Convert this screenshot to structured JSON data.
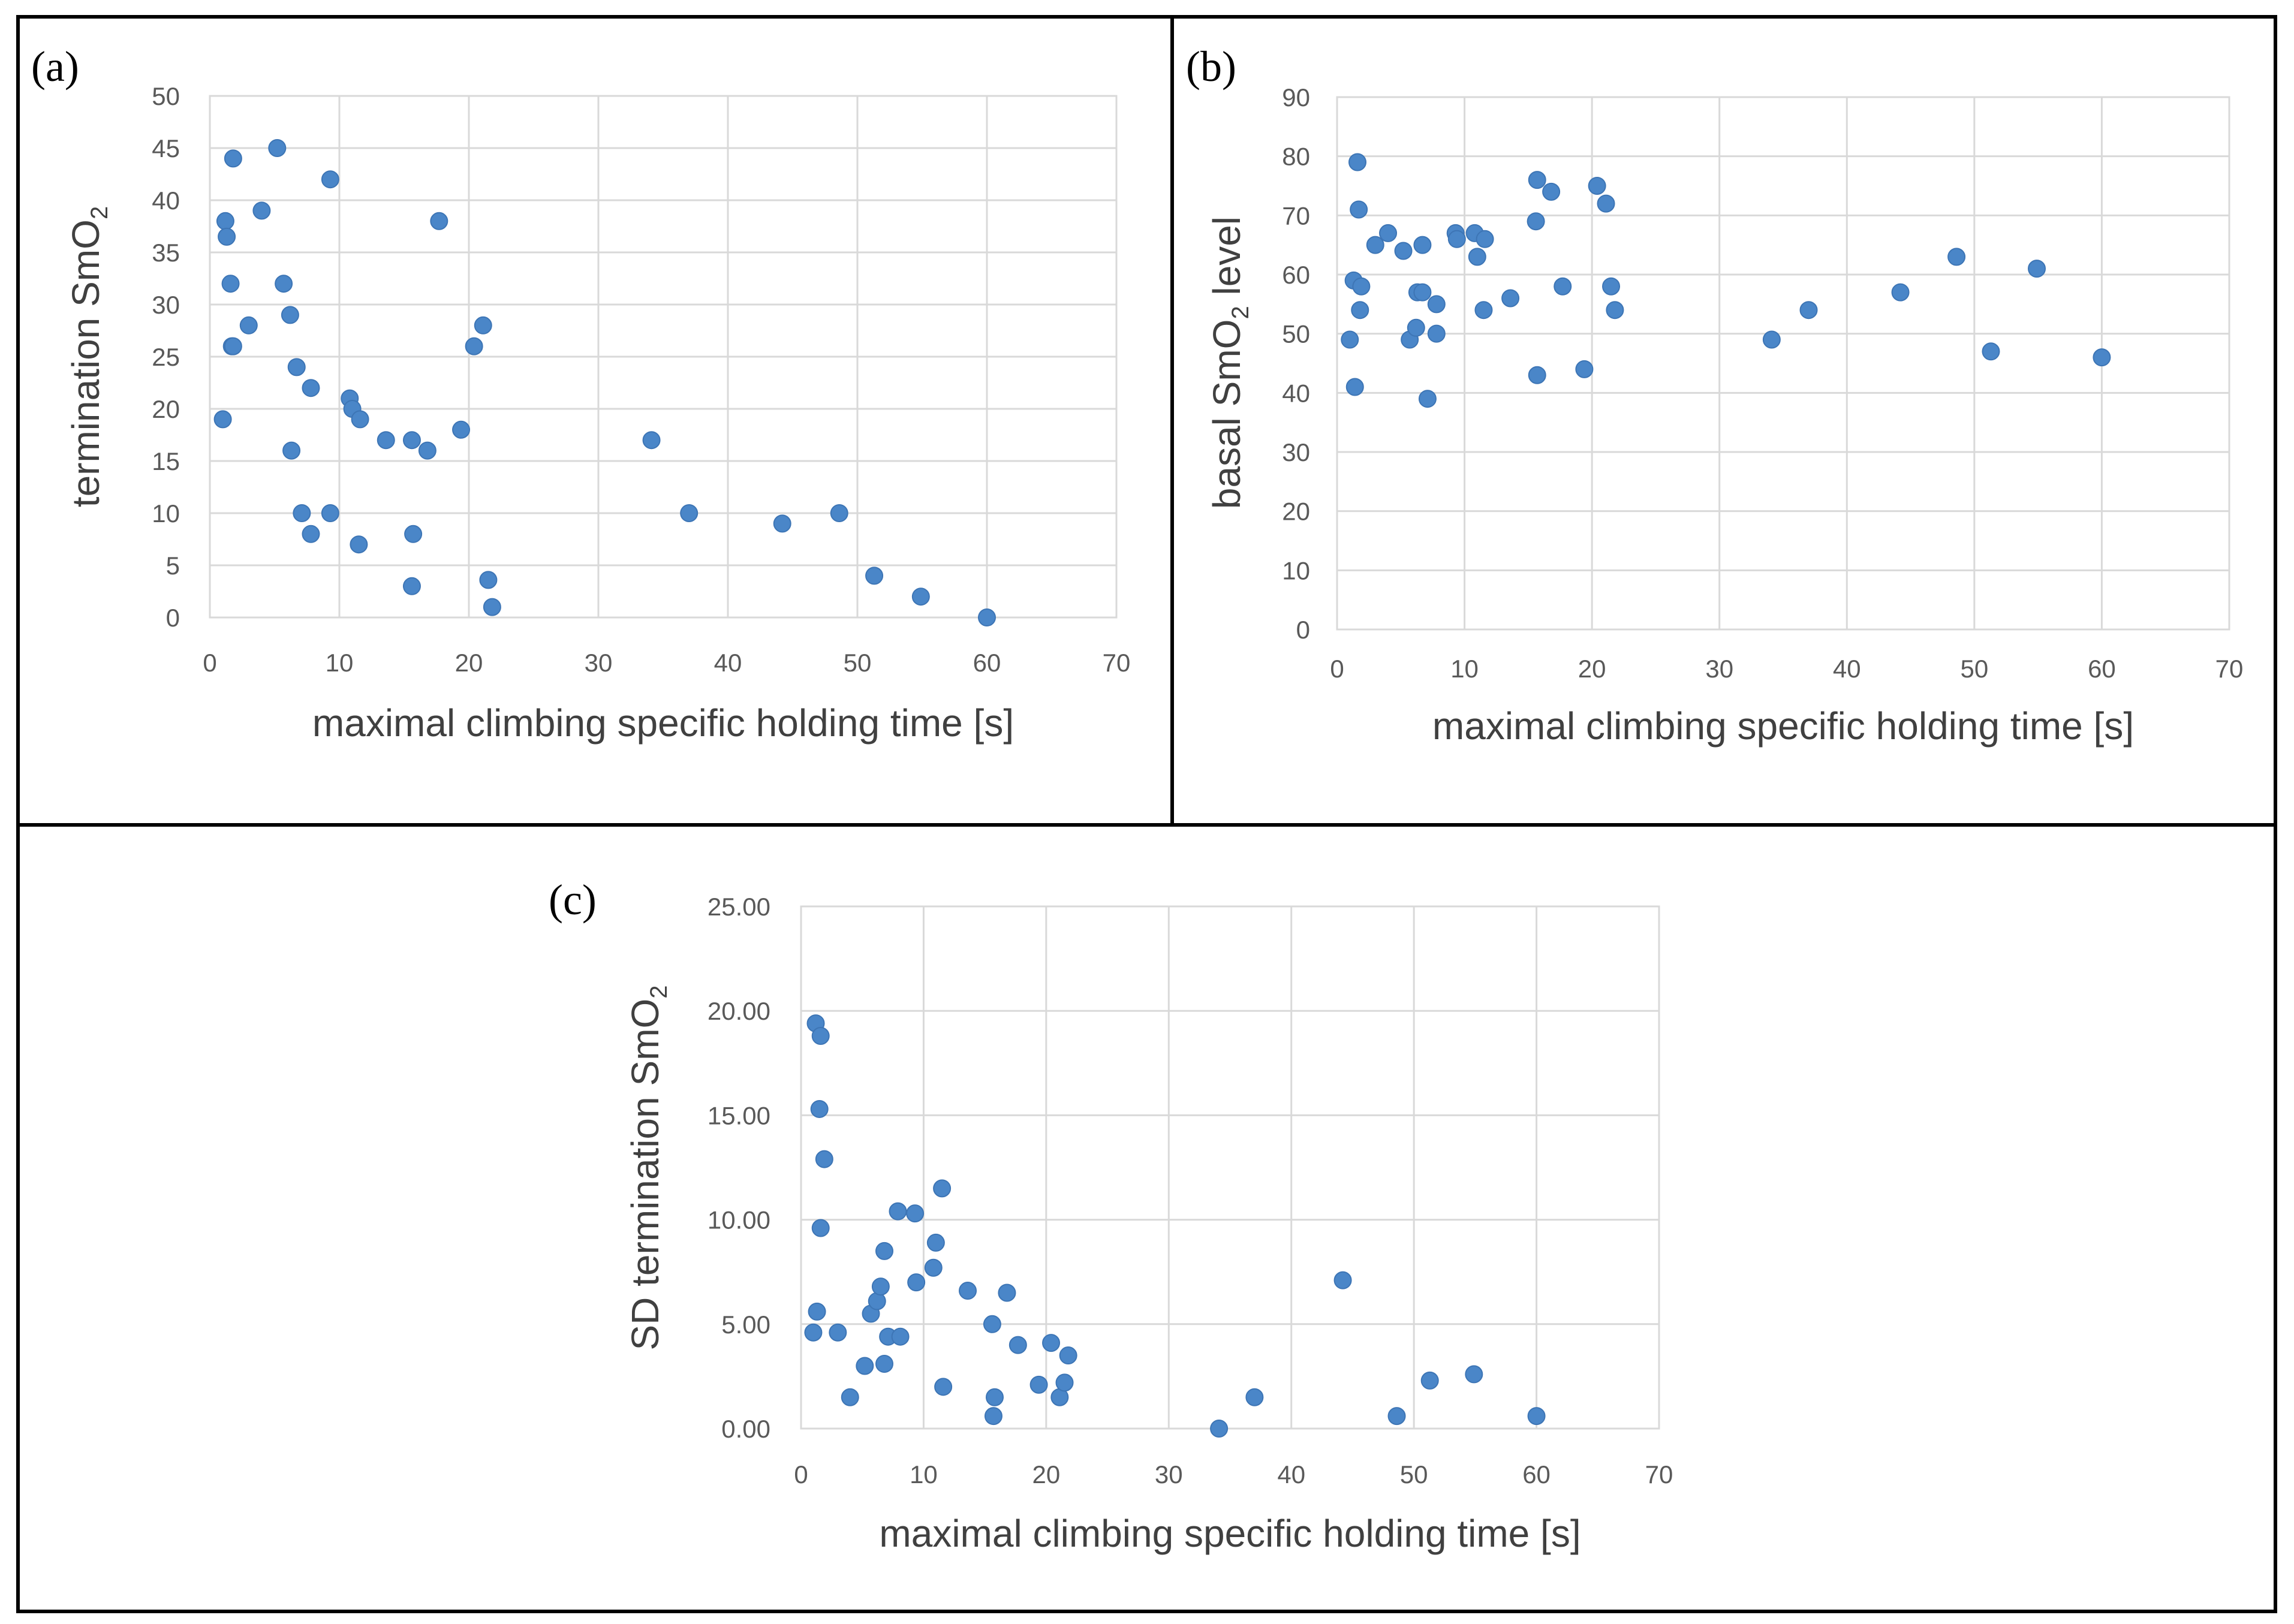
{
  "chart_data": [
    {
      "type": "scatter",
      "panel_label": "(a)",
      "title": "",
      "xlabel": "maximal climbing specific holding time [s]",
      "ylabel": "termination SmO",
      "ylabel_subscript": "2",
      "xlim": [
        0,
        70
      ],
      "ylim": [
        0,
        50
      ],
      "x_ticks": [
        "0",
        "10",
        "20",
        "30",
        "40",
        "50",
        "60",
        "70"
      ],
      "y_ticks": [
        "0",
        "5",
        "10",
        "15",
        "20",
        "25",
        "30",
        "35",
        "40",
        "45",
        "50"
      ],
      "grid": true,
      "legend": "none",
      "points": [
        [
          1.2,
          38
        ],
        [
          1.3,
          36.5
        ],
        [
          1.6,
          32
        ],
        [
          1.7,
          26
        ],
        [
          1.8,
          26
        ],
        [
          1.8,
          44
        ],
        [
          1.0,
          19
        ],
        [
          3.0,
          28
        ],
        [
          4.0,
          39
        ],
        [
          5.2,
          45
        ],
        [
          5.7,
          32
        ],
        [
          6.2,
          29
        ],
        [
          6.7,
          24
        ],
        [
          6.3,
          16
        ],
        [
          7.1,
          10
        ],
        [
          7.8,
          22
        ],
        [
          7.8,
          8
        ],
        [
          9.3,
          10
        ],
        [
          9.3,
          42
        ],
        [
          10.8,
          21
        ],
        [
          11.0,
          20
        ],
        [
          11.6,
          19
        ],
        [
          11.5,
          7
        ],
        [
          13.6,
          17
        ],
        [
          15.6,
          17
        ],
        [
          15.7,
          8
        ],
        [
          15.6,
          3
        ],
        [
          16.8,
          16
        ],
        [
          17.7,
          38
        ],
        [
          19.4,
          18
        ],
        [
          20.4,
          26
        ],
        [
          21.1,
          28
        ],
        [
          21.5,
          3.6
        ],
        [
          21.8,
          1
        ],
        [
          34.1,
          17
        ],
        [
          37.0,
          10
        ],
        [
          44.2,
          9
        ],
        [
          48.6,
          10
        ],
        [
          51.3,
          4
        ],
        [
          54.9,
          2
        ],
        [
          60.0,
          0
        ]
      ]
    },
    {
      "type": "scatter",
      "panel_label": "(b)",
      "title": "",
      "xlabel": "maximal climbing specific holding time [s]",
      "ylabel": "basal SmO",
      "ylabel_subscript": "2",
      "ylabel_suffix": " level",
      "xlim": [
        0,
        70
      ],
      "ylim": [
        0,
        90
      ],
      "x_ticks": [
        "0",
        "10",
        "20",
        "30",
        "40",
        "50",
        "60",
        "70"
      ],
      "y_ticks": [
        "0",
        "10",
        "20",
        "30",
        "40",
        "50",
        "60",
        "70",
        "80",
        "90"
      ],
      "grid": true,
      "legend": "none",
      "points": [
        [
          1.0,
          49
        ],
        [
          1.3,
          59
        ],
        [
          1.4,
          41
        ],
        [
          1.6,
          79
        ],
        [
          1.7,
          71
        ],
        [
          1.8,
          54
        ],
        [
          1.9,
          58
        ],
        [
          3.0,
          65
        ],
        [
          4.0,
          67
        ],
        [
          5.2,
          64
        ],
        [
          5.7,
          49
        ],
        [
          6.2,
          51
        ],
        [
          6.3,
          57
        ],
        [
          6.7,
          57
        ],
        [
          6.7,
          65
        ],
        [
          7.1,
          39
        ],
        [
          7.8,
          55
        ],
        [
          7.8,
          50
        ],
        [
          9.3,
          67
        ],
        [
          9.4,
          66
        ],
        [
          10.8,
          67
        ],
        [
          11.0,
          63
        ],
        [
          11.5,
          54
        ],
        [
          11.6,
          66
        ],
        [
          13.6,
          56
        ],
        [
          15.6,
          69
        ],
        [
          15.7,
          76
        ],
        [
          15.7,
          43
        ],
        [
          16.8,
          74
        ],
        [
          17.7,
          58
        ],
        [
          19.4,
          44
        ],
        [
          20.4,
          75
        ],
        [
          21.1,
          72
        ],
        [
          21.5,
          58
        ],
        [
          21.8,
          54
        ],
        [
          34.1,
          49
        ],
        [
          37.0,
          54
        ],
        [
          44.2,
          57
        ],
        [
          48.6,
          63
        ],
        [
          51.3,
          47
        ],
        [
          54.9,
          61
        ],
        [
          60.0,
          46
        ]
      ]
    },
    {
      "type": "scatter",
      "panel_label": "(c)",
      "title": "",
      "xlabel": "maximal climbing specific holding time [s]",
      "ylabel": "SD termination SmO",
      "ylabel_subscript": "2",
      "xlim": [
        0,
        70
      ],
      "ylim": [
        0,
        25
      ],
      "x_ticks": [
        "0",
        "10",
        "20",
        "30",
        "40",
        "50",
        "60",
        "70"
      ],
      "y_ticks": [
        "0.00",
        "5.00",
        "10.00",
        "15.00",
        "20.00",
        "25.00"
      ],
      "grid": true,
      "legend": "none",
      "points": [
        [
          1.2,
          19.4
        ],
        [
          1.6,
          18.8
        ],
        [
          1.5,
          15.3
        ],
        [
          1.9,
          12.9
        ],
        [
          1.6,
          9.6
        ],
        [
          1.3,
          5.6
        ],
        [
          1.0,
          4.6
        ],
        [
          3.0,
          4.6
        ],
        [
          4.0,
          1.5
        ],
        [
          5.2,
          3.0
        ],
        [
          5.7,
          5.5
        ],
        [
          6.2,
          6.1
        ],
        [
          6.5,
          6.8
        ],
        [
          6.8,
          8.5
        ],
        [
          6.8,
          3.1
        ],
        [
          7.1,
          4.4
        ],
        [
          7.9,
          10.4
        ],
        [
          8.1,
          4.4
        ],
        [
          9.3,
          10.3
        ],
        [
          9.4,
          7.0
        ],
        [
          10.8,
          7.7
        ],
        [
          11.0,
          8.9
        ],
        [
          11.5,
          11.5
        ],
        [
          11.6,
          2.0
        ],
        [
          13.6,
          6.6
        ],
        [
          15.6,
          5.0
        ],
        [
          15.7,
          0.6
        ],
        [
          15.8,
          1.5
        ],
        [
          16.8,
          6.5
        ],
        [
          17.7,
          4.0
        ],
        [
          19.4,
          2.1
        ],
        [
          20.4,
          4.1
        ],
        [
          21.1,
          1.5
        ],
        [
          21.5,
          2.2
        ],
        [
          21.8,
          3.5
        ],
        [
          34.1,
          0.0
        ],
        [
          37.0,
          1.5
        ],
        [
          44.2,
          7.1
        ],
        [
          48.6,
          0.6
        ],
        [
          51.3,
          2.3
        ],
        [
          54.9,
          2.6
        ],
        [
          60.0,
          0.6
        ]
      ]
    }
  ]
}
